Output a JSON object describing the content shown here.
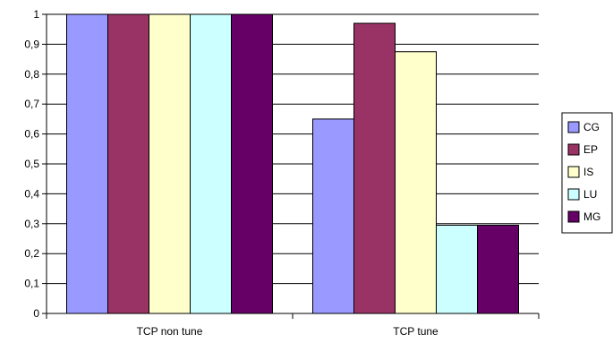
{
  "chart_data": {
    "type": "bar",
    "categories": [
      "TCP non tune",
      "TCP tune"
    ],
    "series": [
      {
        "name": "CG",
        "values": [
          1.0,
          0.65
        ],
        "color": "#9999FF"
      },
      {
        "name": "EP",
        "values": [
          1.0,
          0.97
        ],
        "color": "#993366"
      },
      {
        "name": "IS",
        "values": [
          1.0,
          0.875
        ],
        "color": "#FFFFCC"
      },
      {
        "name": "LU",
        "values": [
          1.0,
          0.295
        ],
        "color": "#CCFFFF"
      },
      {
        "name": "MG",
        "values": [
          1.0,
          0.295
        ],
        "color": "#660066"
      }
    ],
    "ylim": [
      0,
      1
    ],
    "yticks": [
      "0",
      "0,1",
      "0,2",
      "0,3",
      "0,4",
      "0,5",
      "0,6",
      "0,7",
      "0,8",
      "0,9",
      "1"
    ],
    "title": "",
    "xlabel": "",
    "ylabel": "",
    "grid": "horizontal",
    "legend_position": "right"
  }
}
